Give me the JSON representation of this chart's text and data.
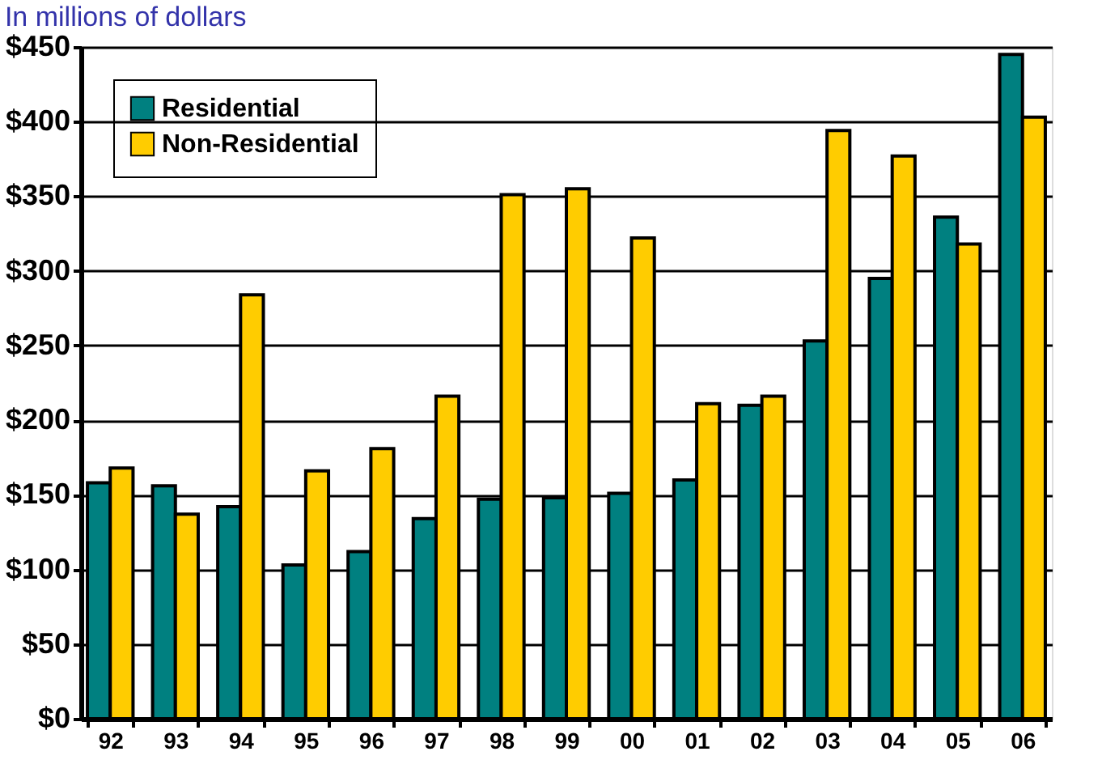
{
  "chart_data": {
    "type": "bar",
    "title": "In millions of dollars",
    "categories": [
      "92",
      "93",
      "94",
      "95",
      "96",
      "97",
      "98",
      "99",
      "00",
      "01",
      "02",
      "03",
      "04",
      "05",
      "06"
    ],
    "series": [
      {
        "name": "Residential",
        "color": "#008080",
        "values": [
          158,
          156,
          142,
          103,
          112,
          134,
          147,
          148,
          151,
          160,
          210,
          253,
          295,
          336,
          445
        ]
      },
      {
        "name": "Non-Residential",
        "color": "#ffcc00",
        "values": [
          168,
          137,
          284,
          166,
          181,
          216,
          351,
          355,
          322,
          211,
          216,
          394,
          377,
          318,
          403
        ]
      }
    ],
    "ylim": [
      0,
      450
    ],
    "yticks": [
      {
        "value": 0,
        "label": "$0"
      },
      {
        "value": 50,
        "label": "$50"
      },
      {
        "value": 100,
        "label": "$100"
      },
      {
        "value": 150,
        "label": "$150"
      },
      {
        "value": 200,
        "label": "$200"
      },
      {
        "value": 250,
        "label": "$250"
      },
      {
        "value": 300,
        "label": "$300"
      },
      {
        "value": 350,
        "label": "$350"
      },
      {
        "value": 400,
        "label": "$400"
      },
      {
        "value": 450,
        "label": "$450"
      }
    ],
    "grid": "y",
    "legend": "top left"
  }
}
